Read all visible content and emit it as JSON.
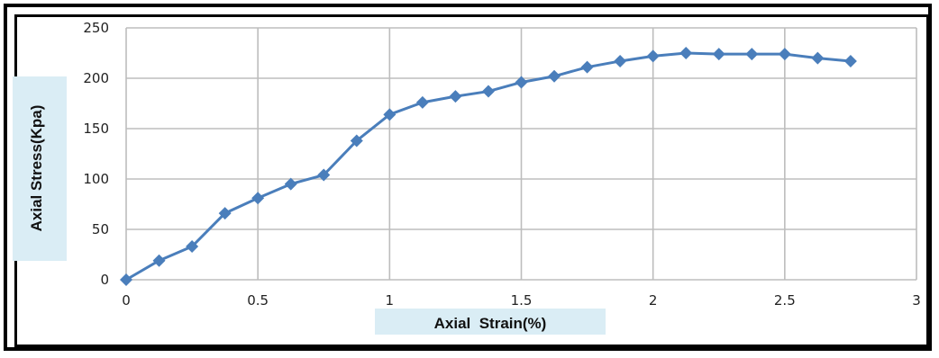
{
  "chart_data": {
    "type": "line",
    "xlabel": "Axial  Strain(%)",
    "ylabel": "Axial Stress(Kpa)",
    "xlim": [
      0,
      3
    ],
    "ylim": [
      0,
      250
    ],
    "xticks": [
      0,
      0.5,
      1,
      1.5,
      2,
      2.5,
      3
    ],
    "yticks": [
      0,
      50,
      100,
      150,
      200,
      250
    ],
    "xtick_labels": [
      "0",
      "0.5",
      "1",
      "1.5",
      "2",
      "2.5",
      "3"
    ],
    "ytick_labels": [
      "0",
      "50",
      "100",
      "150",
      "200",
      "250"
    ],
    "grid": true,
    "legend": false,
    "series": [
      {
        "color": "#4a7ebb",
        "marker": "diamond",
        "x": [
          0,
          0.125,
          0.25,
          0.375,
          0.5,
          0.625,
          0.75,
          0.875,
          1.0,
          1.125,
          1.25,
          1.375,
          1.5,
          1.625,
          1.75,
          1.875,
          2.0,
          2.125,
          2.25,
          2.375,
          2.5,
          2.625,
          2.75
        ],
        "y": [
          0,
          19,
          33,
          66,
          81,
          95,
          104,
          138,
          164,
          176,
          182,
          187,
          196,
          202,
          211,
          217,
          222,
          225,
          224,
          224,
          224,
          220,
          217
        ]
      }
    ]
  }
}
